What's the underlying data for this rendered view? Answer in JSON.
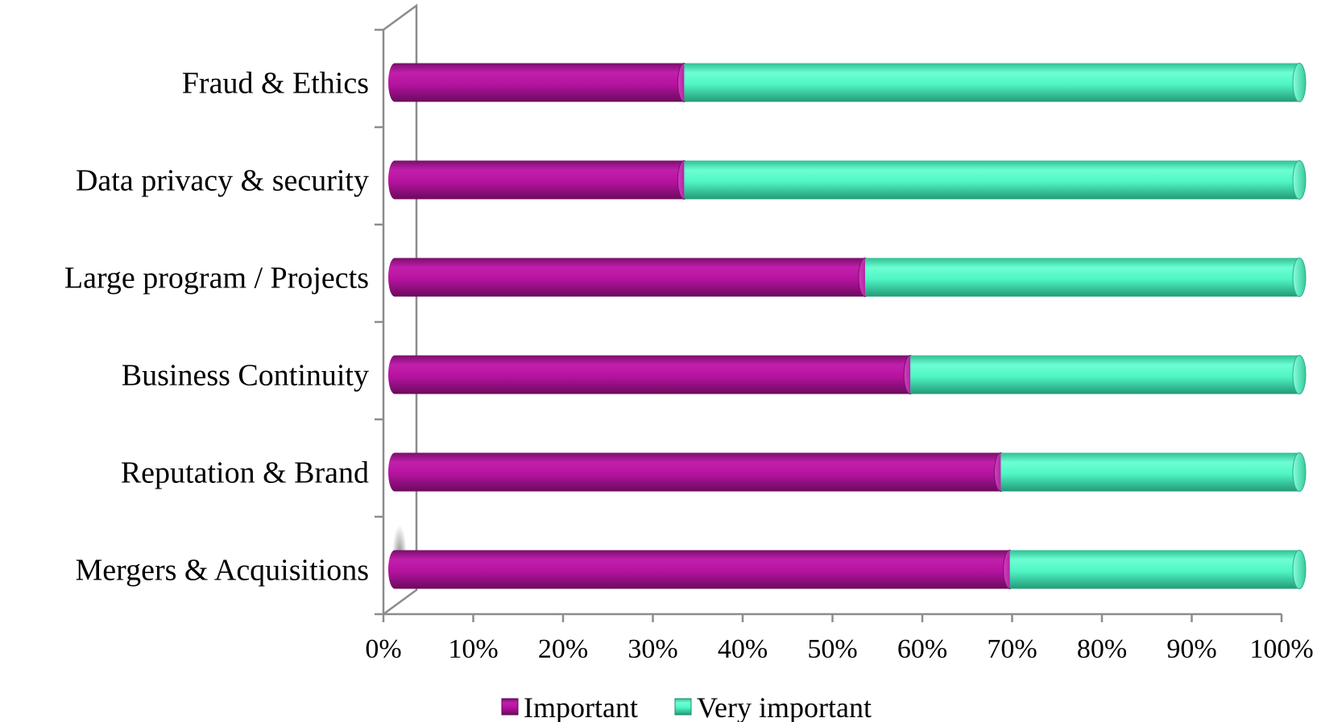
{
  "chart_data": {
    "type": "bar",
    "orientation": "horizontal",
    "stacked": "percent",
    "categories": [
      "Mergers & Acquisitions",
      "Reputation & Brand",
      "Business Continuity",
      "Large program / Projects",
      "Data privacy & security",
      "Fraud & Ethics"
    ],
    "series": [
      {
        "name": "Important",
        "color": "#B5139F",
        "values": [
          68,
          67,
          57,
          52,
          32,
          32
        ]
      },
      {
        "name": "Very important",
        "color": "#4FF5C5",
        "values": [
          32,
          33,
          43,
          48,
          68,
          68
        ]
      }
    ],
    "x_ticks": [
      "0%",
      "10%",
      "20%",
      "30%",
      "40%",
      "50%",
      "60%",
      "70%",
      "80%",
      "90%",
      "100%"
    ],
    "xlim": [
      0,
      100
    ],
    "grid": false,
    "legend_position": "bottom",
    "title": "",
    "xlabel": "",
    "ylabel": ""
  }
}
